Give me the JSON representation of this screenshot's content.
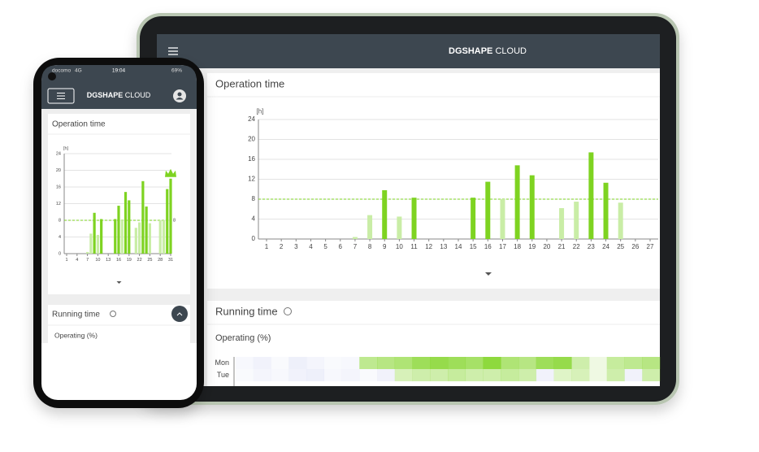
{
  "tablet": {
    "header": {
      "brand_bold": "DGSHAPE",
      "brand_light": "CLOUD"
    },
    "operation_card": {
      "title": "Operation time",
      "chart": {
        "type": "bar",
        "y_unit": "[h]",
        "categories": [
          1,
          2,
          3,
          4,
          5,
          6,
          7,
          8,
          9,
          10,
          11,
          12,
          13,
          14,
          15,
          16,
          17,
          18,
          19,
          20,
          21,
          22,
          23,
          24,
          25,
          26,
          27
        ],
        "ylim": [
          0,
          24
        ],
        "yticks": [
          0,
          4,
          8,
          12,
          16,
          20,
          24
        ],
        "target": 8,
        "series": [
          {
            "color": "#7ed321",
            "values": [
              null,
              null,
              null,
              null,
              null,
              null,
              null,
              null,
              9.8,
              null,
              8.3,
              null,
              null,
              null,
              8.3,
              11.5,
              null,
              14.8,
              12.8,
              null,
              null,
              null,
              17.4,
              11.3,
              null,
              null,
              null
            ]
          },
          {
            "color": "#c9eda6",
            "values": [
              null,
              null,
              null,
              null,
              null,
              null,
              0.4,
              4.8,
              null,
              4.5,
              null,
              null,
              null,
              null,
              null,
              null,
              8,
              null,
              null,
              null,
              6.2,
              7.5,
              null,
              null,
              7.3,
              null,
              null
            ]
          }
        ]
      }
    },
    "running_card": {
      "title": "Running time",
      "subtitle": "Operating (%)",
      "heatmap": {
        "rows": [
          "Mon",
          "Tue"
        ],
        "values": [
          [
            3,
            5,
            2,
            6,
            4,
            2,
            3,
            40,
            45,
            50,
            60,
            65,
            60,
            55,
            70,
            50,
            45,
            60,
            65,
            30,
            10,
            35,
            40,
            45
          ],
          [
            2,
            4,
            3,
            5,
            6,
            3,
            4,
            2,
            5,
            25,
            30,
            30,
            35,
            30,
            30,
            35,
            30,
            5,
            20,
            25,
            10,
            30,
            5,
            30
          ]
        ]
      }
    }
  },
  "phone": {
    "status": {
      "carrier": "docomo",
      "network": "4G",
      "time": "19:04",
      "battery": "69%"
    },
    "header": {
      "brand_bold": "DGSHAPE",
      "brand_light": "CLOUD"
    },
    "operation_card": {
      "title": "Operation time",
      "chart": {
        "type": "bar",
        "y_unit": "[h]",
        "categories": [
          1,
          null,
          null,
          4,
          null,
          null,
          7,
          null,
          null,
          10,
          null,
          null,
          13,
          null,
          null,
          16,
          null,
          null,
          19,
          null,
          null,
          22,
          null,
          null,
          25,
          null,
          null,
          28,
          null,
          null,
          31
        ],
        "ylim": [
          0,
          24
        ],
        "yticks": [
          0,
          4,
          8,
          12,
          16,
          20,
          24
        ],
        "target": 8,
        "series": [
          {
            "color": "#7ed321",
            "values": [
              null,
              null,
              null,
              null,
              null,
              null,
              null,
              null,
              9.8,
              null,
              8.3,
              null,
              null,
              null,
              8.3,
              11.5,
              null,
              14.8,
              12.8,
              null,
              null,
              null,
              17.4,
              11.3,
              null,
              null,
              null,
              null,
              null,
              15.5,
              18
            ]
          },
          {
            "color": "#c9eda6",
            "values": [
              null,
              null,
              null,
              null,
              null,
              null,
              0.4,
              4.8,
              null,
              4.5,
              null,
              null,
              null,
              null,
              null,
              null,
              8,
              null,
              null,
              null,
              6.2,
              7.5,
              null,
              null,
              7.3,
              null,
              null,
              8,
              8,
              null,
              null
            ]
          }
        ]
      }
    },
    "running_card": {
      "title": "Running time",
      "subtitle": "Operating (%)"
    }
  }
}
